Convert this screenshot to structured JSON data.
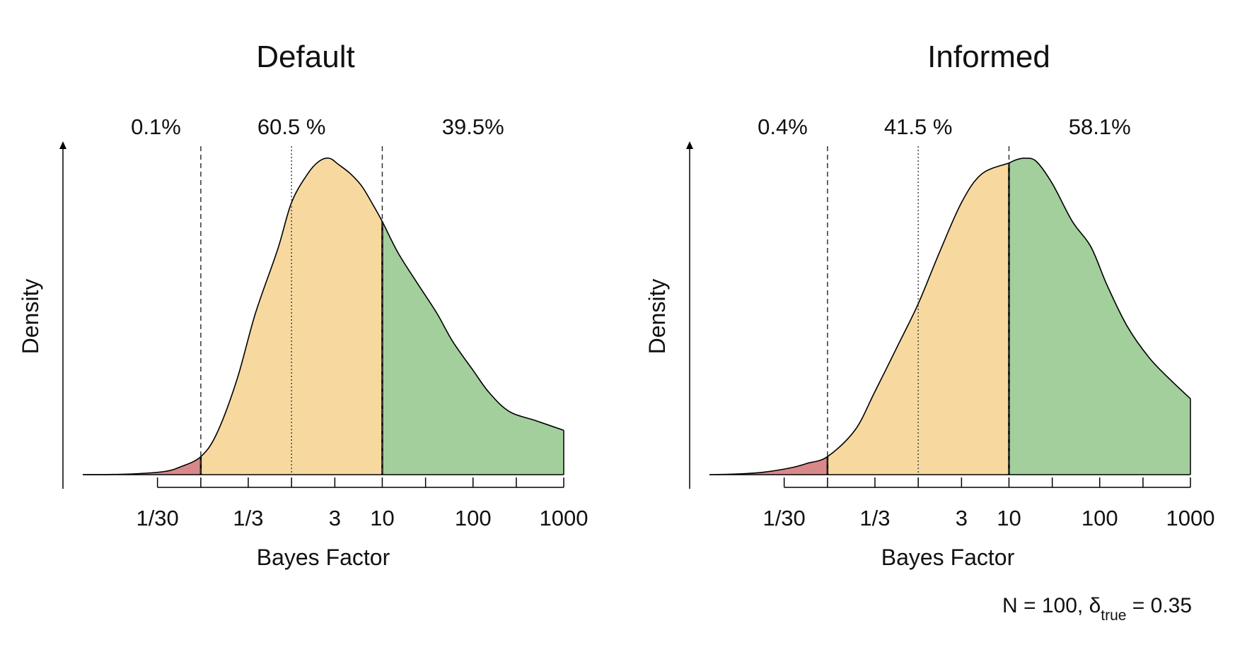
{
  "chart_data": [
    {
      "type": "area",
      "title": "Default",
      "xlabel": "Bayes Factor",
      "ylabel": "Density",
      "x_scale": "log",
      "xlim": [
        0.005,
        1000
      ],
      "x_ticks": [
        0.0333,
        0.1,
        0.3333,
        1,
        3,
        10,
        30,
        100,
        300,
        1000
      ],
      "x_tick_labels": [
        "1/30",
        "",
        "1/3",
        "",
        "3",
        "10",
        "",
        "100",
        "",
        "1000"
      ],
      "thresholds": {
        "dashed": [
          0.1,
          10
        ],
        "dotted": [
          1
        ]
      },
      "region_colors": [
        "#d9888a",
        "#f7d9a0",
        "#a3cf9d"
      ],
      "region_percents": [
        "0.1%",
        "60.5 %",
        "39.5%"
      ],
      "density_curve": {
        "x": [
          0.005,
          0.01,
          0.02,
          0.04,
          0.06,
          0.1,
          0.15,
          0.25,
          0.4,
          0.7,
          1,
          1.5,
          2,
          2.6,
          3.3,
          4.5,
          6,
          8,
          10,
          15,
          25,
          40,
          60,
          100,
          150,
          250,
          500,
          1000
        ],
        "y": [
          0,
          0.0005,
          0.003,
          0.01,
          0.025,
          0.057,
          0.13,
          0.3,
          0.51,
          0.71,
          0.86,
          0.95,
          0.99,
          1.0,
          0.98,
          0.95,
          0.91,
          0.85,
          0.8,
          0.7,
          0.6,
          0.51,
          0.42,
          0.33,
          0.26,
          0.2,
          0.17,
          0.14
        ]
      }
    },
    {
      "type": "area",
      "title": "Informed",
      "xlabel": "Bayes Factor",
      "ylabel": "Density",
      "x_scale": "log",
      "xlim": [
        0.005,
        1000
      ],
      "x_ticks": [
        0.0333,
        0.1,
        0.3333,
        1,
        3,
        10,
        30,
        100,
        300,
        1000
      ],
      "x_tick_labels": [
        "1/30",
        "",
        "1/3",
        "",
        "3",
        "10",
        "",
        "100",
        "",
        "1000"
      ],
      "thresholds": {
        "dashed": [
          0.1,
          10
        ],
        "dotted": [
          1
        ]
      },
      "region_colors": [
        "#d9888a",
        "#f7d9a0",
        "#a3cf9d"
      ],
      "region_percents": [
        "0.4%",
        "41.5 %",
        "58.1%"
      ],
      "density_curve": {
        "x": [
          0.005,
          0.01,
          0.02,
          0.04,
          0.06,
          0.1,
          0.2,
          0.33,
          0.6,
          1,
          1.7,
          3,
          5,
          10,
          12,
          15,
          20,
          30,
          50,
          80,
          120,
          200,
          350,
          600,
          1000
        ],
        "y": [
          0,
          0.002,
          0.008,
          0.022,
          0.036,
          0.057,
          0.14,
          0.26,
          0.41,
          0.54,
          0.7,
          0.86,
          0.95,
          0.985,
          0.995,
          1.0,
          0.99,
          0.92,
          0.8,
          0.72,
          0.6,
          0.47,
          0.37,
          0.3,
          0.24
        ]
      }
    }
  ],
  "footnote": {
    "prefix": "N = 100, δ",
    "subscript": "true",
    "suffix": " = 0.35"
  }
}
